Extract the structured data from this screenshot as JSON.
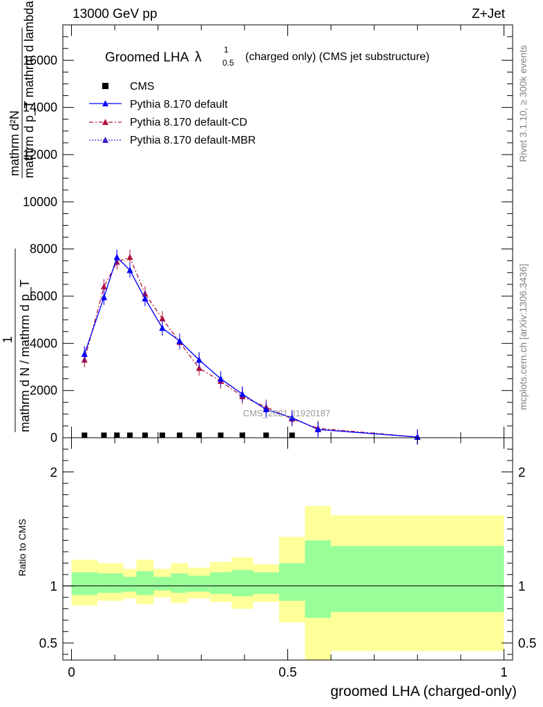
{
  "header": {
    "left_title": "13000 GeV pp",
    "right_title": "Z+Jet"
  },
  "plot_title": {
    "main": "Groomed LHA",
    "lambda": "λ",
    "superscript": "1",
    "subscript": "0.5",
    "suffix": "(charged only) (CMS jet substructure)"
  },
  "side_labels": {
    "rivet": "Rivet 3.1.10, ≥ 300k events",
    "mcplots": "mcplots.cern.ch [arXiv:1306.3436]"
  },
  "watermark": "CMS_2021_I1920187",
  "legend": [
    {
      "label": "CMS",
      "color": "#000000",
      "marker": "square",
      "dash": "none"
    },
    {
      "label": "Pythia 8.170 default",
      "color": "#0000ff",
      "marker": "triangle",
      "dash": "solid"
    },
    {
      "label": "Pythia 8.170 default-CD",
      "color": "#b0103a",
      "marker": "triangle",
      "dash": "dashdot"
    },
    {
      "label": "Pythia 8.170 default-MBR",
      "color": "#3a1acc",
      "marker": "triangle",
      "dash": "dotted"
    }
  ],
  "chart_data": [
    {
      "type": "line",
      "panel": "main",
      "ylabel_upper": {
        "numerator": "mathrm d²N",
        "denominator": "mathrm d p_T mathrm d lambda"
      },
      "ylabel_lower": {
        "numerator": "1",
        "denominator": "mathrm d N / mathrm d p_T"
      },
      "xlim": [
        -0.02,
        1.02
      ],
      "ylim": [
        0,
        17500
      ],
      "yticks": [
        0,
        2000,
        4000,
        6000,
        8000,
        10000,
        12000,
        14000,
        16000
      ],
      "ytick_labels": [
        "0",
        "2000",
        "4000",
        "6000",
        "8000",
        "10000",
        "12000",
        "14000",
        "16000"
      ],
      "x": [
        0.03,
        0.075,
        0.105,
        0.135,
        0.17,
        0.21,
        0.25,
        0.295,
        0.345,
        0.395,
        0.45,
        0.51,
        0.57,
        0.8
      ],
      "series": [
        {
          "name": "CMS",
          "values": [
            15,
            15,
            15,
            15,
            15,
            15,
            15,
            15,
            15,
            15,
            15,
            15,
            null,
            null
          ]
        },
        {
          "name": "Pythia 8.170 default",
          "values": [
            3550,
            5950,
            7650,
            7100,
            5900,
            4650,
            4100,
            3300,
            2500,
            1850,
            1200,
            850,
            350,
            30
          ]
        },
        {
          "name": "Pythia 8.170 default-CD",
          "values": [
            3300,
            6400,
            7450,
            7650,
            6100,
            5050,
            4050,
            2950,
            2400,
            1750,
            1300,
            800,
            400,
            30
          ]
        },
        {
          "name": "Pythia 8.170 default-MBR",
          "values": [
            3550,
            5950,
            7650,
            7100,
            5900,
            4650,
            4100,
            3300,
            2500,
            1850,
            1200,
            850,
            350,
            30
          ]
        }
      ]
    },
    {
      "type": "area",
      "panel": "ratio",
      "ylabel": "Ratio to CMS",
      "xlabel": "groomed LHA (charged-only)",
      "xlim": [
        -0.02,
        1.02
      ],
      "ylim": [
        0.35,
        2.3
      ],
      "yticks": [
        0.5,
        1,
        2
      ],
      "ytick_labels": [
        "0.5",
        "1",
        "2"
      ],
      "xticks": [
        0,
        0.5,
        1
      ],
      "xtick_labels": [
        "0",
        "0.5",
        "1"
      ],
      "bins": [
        {
          "lo": 0.0,
          "hi": 0.06,
          "green": [
            0.92,
            1.12
          ],
          "yellow": [
            0.83,
            1.23
          ]
        },
        {
          "lo": 0.06,
          "hi": 0.09,
          "green": [
            0.94,
            1.11
          ],
          "yellow": [
            0.87,
            1.2
          ]
        },
        {
          "lo": 0.09,
          "hi": 0.12,
          "green": [
            0.94,
            1.11
          ],
          "yellow": [
            0.87,
            1.2
          ]
        },
        {
          "lo": 0.12,
          "hi": 0.15,
          "green": [
            0.95,
            1.08
          ],
          "yellow": [
            0.89,
            1.15
          ]
        },
        {
          "lo": 0.15,
          "hi": 0.19,
          "green": [
            0.92,
            1.13
          ],
          "yellow": [
            0.84,
            1.23
          ]
        },
        {
          "lo": 0.19,
          "hi": 0.23,
          "green": [
            0.96,
            1.08
          ],
          "yellow": [
            0.9,
            1.15
          ]
        },
        {
          "lo": 0.23,
          "hi": 0.27,
          "green": [
            0.94,
            1.11
          ],
          "yellow": [
            0.85,
            1.2
          ]
        },
        {
          "lo": 0.27,
          "hi": 0.32,
          "green": [
            0.95,
            1.09
          ],
          "yellow": [
            0.89,
            1.16
          ]
        },
        {
          "lo": 0.32,
          "hi": 0.37,
          "green": [
            0.93,
            1.12
          ],
          "yellow": [
            0.86,
            1.21
          ]
        },
        {
          "lo": 0.37,
          "hi": 0.42,
          "green": [
            0.91,
            1.14
          ],
          "yellow": [
            0.8,
            1.25
          ]
        },
        {
          "lo": 0.42,
          "hi": 0.48,
          "green": [
            0.93,
            1.12
          ],
          "yellow": [
            0.86,
            1.19
          ]
        },
        {
          "lo": 0.48,
          "hi": 0.54,
          "green": [
            0.87,
            1.2
          ],
          "yellow": [
            0.68,
            1.43
          ]
        },
        {
          "lo": 0.54,
          "hi": 0.6,
          "green": [
            0.72,
            1.4
          ],
          "yellow": [
            0.35,
            1.7
          ]
        },
        {
          "lo": 0.6,
          "hi": 1.0,
          "green": [
            0.77,
            1.35
          ],
          "yellow": [
            0.43,
            1.62
          ]
        }
      ]
    }
  ]
}
